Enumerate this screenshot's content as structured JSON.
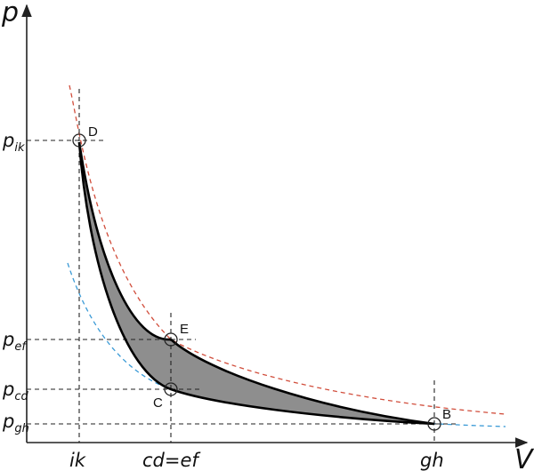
{
  "axes": {
    "y_title": "p",
    "x_title": "V"
  },
  "y_ticks": [
    {
      "id": "ik",
      "base": "p",
      "sub": "ik"
    },
    {
      "id": "ef",
      "base": "p",
      "sub": "ef"
    },
    {
      "id": "cd",
      "base": "p",
      "sub": "cd"
    },
    {
      "id": "gh",
      "base": "p",
      "sub": "gh"
    }
  ],
  "x_ticks": [
    {
      "id": "ik",
      "label": "ik"
    },
    {
      "id": "cdef",
      "label": "cd=ef"
    },
    {
      "id": "gh",
      "label": "gh"
    }
  ],
  "points": [
    {
      "id": "D",
      "label": "D"
    },
    {
      "id": "E",
      "label": "E"
    },
    {
      "id": "C",
      "label": "C"
    },
    {
      "id": "B",
      "label": "B"
    }
  ],
  "colors": {
    "fill": "#8e8e8e",
    "upper_isotherm": "#d14d3b",
    "lower_isotherm": "#3a9ad6",
    "process_curve": "#000000"
  }
}
